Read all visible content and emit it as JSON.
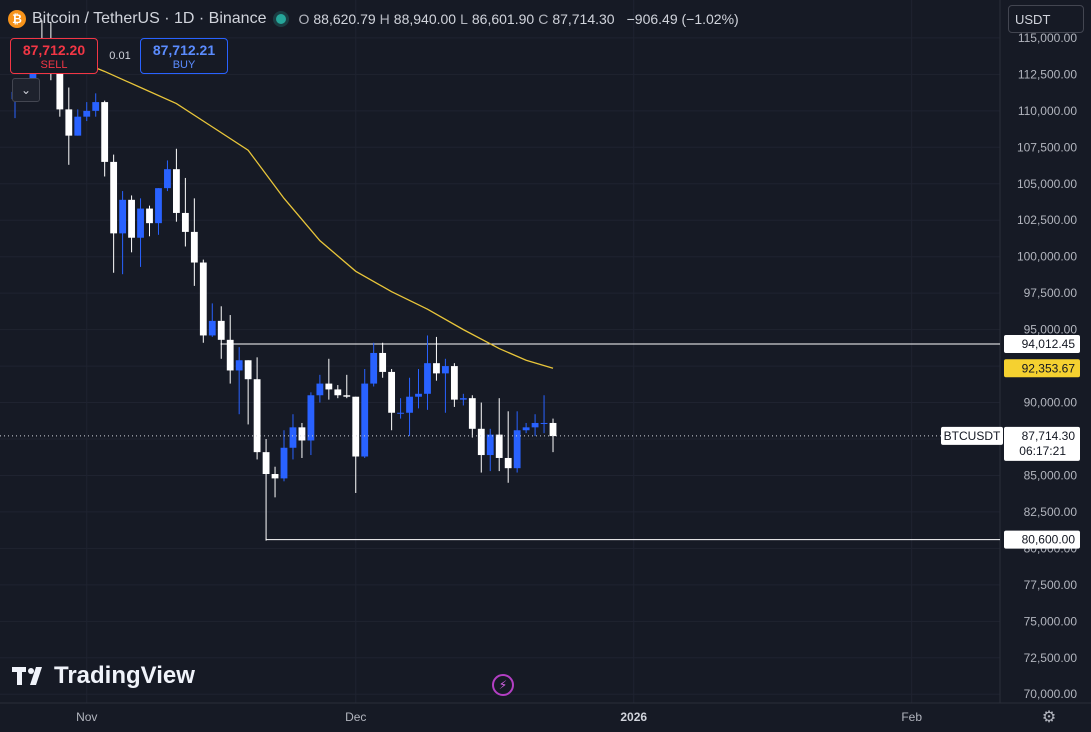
{
  "header": {
    "symbol_title": "Bitcoin / TetherUS · 1D · Binance",
    "o_label": "O",
    "o_value": "88,620.79",
    "h_label": "H",
    "h_value": "88,940.00",
    "l_label": "L",
    "l_value": "86,601.90",
    "c_label": "C",
    "c_value": "87,714.30",
    "change": "−906.49 (−1.02%)"
  },
  "trade": {
    "sell_price": "87,712.20",
    "sell_label": "SELL",
    "buy_price": "87,712.21",
    "buy_label": "BUY",
    "spread": "0.01"
  },
  "currency_selector": "USDT",
  "watermark": "TradingView",
  "colors": {
    "background": "#161a25",
    "up_candle": "#2962ff",
    "down_candle": "#ffffff",
    "ma_line": "#e8c53a",
    "grid": "#1f2330",
    "axis_text": "#b2b5be"
  },
  "chart_data": {
    "type": "candlestick",
    "symbol": "BTCUSDT",
    "interval": "1D",
    "y_axis": {
      "ticks": [
        115000,
        112500,
        110000,
        107500,
        105000,
        102500,
        100000,
        97500,
        95000,
        92500,
        90000,
        87500,
        85000,
        82500,
        80000,
        77500,
        75000,
        72500,
        70000
      ],
      "tick_labels": [
        "115,000.00",
        "112,500.00",
        "110,000.00",
        "107,500.00",
        "105,000.00",
        "102,500.00",
        "100,000.00",
        "97,500.00",
        "95,000.00",
        "92,500.00",
        "90,000.00",
        "87,500.00",
        "85,000.00",
        "82,500.00",
        "80,000.00",
        "77,500.00",
        "75,000.00",
        "72,500.00",
        "70,000.00"
      ],
      "range": [
        69400,
        117600
      ],
      "side": "right"
    },
    "x_axis": {
      "tick_labels": [
        "Nov",
        "Dec",
        "2026",
        "Feb"
      ],
      "tick_dates": [
        "2025-11-01",
        "2025-12-01",
        "2026-01-01",
        "2026-02-01"
      ],
      "range": [
        "2025-10-24",
        "2026-02-22"
      ]
    },
    "candles": [
      {
        "date": "2025-10-24",
        "o": 110800,
        "h": 111900,
        "l": 109500,
        "c": 111300
      },
      {
        "date": "2025-10-25",
        "o": 111300,
        "h": 112000,
        "l": 110800,
        "c": 111600
      },
      {
        "date": "2025-10-26",
        "o": 111600,
        "h": 115000,
        "l": 111300,
        "c": 114600
      },
      {
        "date": "2025-10-27",
        "o": 114600,
        "h": 116200,
        "l": 113900,
        "c": 114100
      },
      {
        "date": "2025-10-28",
        "o": 114100,
        "h": 116100,
        "l": 112100,
        "c": 112900
      },
      {
        "date": "2025-10-29",
        "o": 112900,
        "h": 113600,
        "l": 109600,
        "c": 110100
      },
      {
        "date": "2025-10-30",
        "o": 110100,
        "h": 111600,
        "l": 106300,
        "c": 108300
      },
      {
        "date": "2025-10-31",
        "o": 108300,
        "h": 110100,
        "l": 108300,
        "c": 109600
      },
      {
        "date": "2025-11-01",
        "o": 109600,
        "h": 110600,
        "l": 109300,
        "c": 110000
      },
      {
        "date": "2025-11-02",
        "o": 110000,
        "h": 111200,
        "l": 109600,
        "c": 110600
      },
      {
        "date": "2025-11-03",
        "o": 110600,
        "h": 110700,
        "l": 105500,
        "c": 106500
      },
      {
        "date": "2025-11-04",
        "o": 106500,
        "h": 107000,
        "l": 98900,
        "c": 101600
      },
      {
        "date": "2025-11-05",
        "o": 101600,
        "h": 104500,
        "l": 98800,
        "c": 103900
      },
      {
        "date": "2025-11-06",
        "o": 103900,
        "h": 104200,
        "l": 100300,
        "c": 101300
      },
      {
        "date": "2025-11-07",
        "o": 101300,
        "h": 104000,
        "l": 99300,
        "c": 103300
      },
      {
        "date": "2025-11-08",
        "o": 103300,
        "h": 103500,
        "l": 101400,
        "c": 102300
      },
      {
        "date": "2025-11-09",
        "o": 102300,
        "h": 104700,
        "l": 101500,
        "c": 104700
      },
      {
        "date": "2025-11-10",
        "o": 104700,
        "h": 106600,
        "l": 104500,
        "c": 106000
      },
      {
        "date": "2025-11-11",
        "o": 106000,
        "h": 107400,
        "l": 102400,
        "c": 103000
      },
      {
        "date": "2025-11-12",
        "o": 103000,
        "h": 105400,
        "l": 100700,
        "c": 101700
      },
      {
        "date": "2025-11-13",
        "o": 101700,
        "h": 104000,
        "l": 98000,
        "c": 99600
      },
      {
        "date": "2025-11-14",
        "o": 99600,
        "h": 99800,
        "l": 94100,
        "c": 94600
      },
      {
        "date": "2025-11-15",
        "o": 94600,
        "h": 96800,
        "l": 94500,
        "c": 95600
      },
      {
        "date": "2025-11-16",
        "o": 95600,
        "h": 96600,
        "l": 93000,
        "c": 94300
      },
      {
        "date": "2025-11-17",
        "o": 94300,
        "h": 96000,
        "l": 91300,
        "c": 92200
      },
      {
        "date": "2025-11-18",
        "o": 92200,
        "h": 93800,
        "l": 89200,
        "c": 92900
      },
      {
        "date": "2025-11-19",
        "o": 92900,
        "h": 92900,
        "l": 88500,
        "c": 91600
      },
      {
        "date": "2025-11-20",
        "o": 91600,
        "h": 93100,
        "l": 86100,
        "c": 86600
      },
      {
        "date": "2025-11-21",
        "o": 86600,
        "h": 87500,
        "l": 80600,
        "c": 85100
      },
      {
        "date": "2025-11-22",
        "o": 85100,
        "h": 85600,
        "l": 83500,
        "c": 84800
      },
      {
        "date": "2025-11-23",
        "o": 84800,
        "h": 88100,
        "l": 84600,
        "c": 86900
      },
      {
        "date": "2025-11-24",
        "o": 86900,
        "h": 89200,
        "l": 86100,
        "c": 88300
      },
      {
        "date": "2025-11-25",
        "o": 88300,
        "h": 88600,
        "l": 86200,
        "c": 87400
      },
      {
        "date": "2025-11-26",
        "o": 87400,
        "h": 90700,
        "l": 86400,
        "c": 90500
      },
      {
        "date": "2025-11-27",
        "o": 90500,
        "h": 91900,
        "l": 90000,
        "c": 91300
      },
      {
        "date": "2025-11-28",
        "o": 91300,
        "h": 93000,
        "l": 90200,
        "c": 90900
      },
      {
        "date": "2025-11-29",
        "o": 90900,
        "h": 91200,
        "l": 90300,
        "c": 90500
      },
      {
        "date": "2025-11-30",
        "o": 90500,
        "h": 91900,
        "l": 90300,
        "c": 90400
      },
      {
        "date": "2025-12-01",
        "o": 90400,
        "h": 90400,
        "l": 83800,
        "c": 86300
      },
      {
        "date": "2025-12-02",
        "o": 86300,
        "h": 92300,
        "l": 86200,
        "c": 91300
      },
      {
        "date": "2025-12-03",
        "o": 91300,
        "h": 94100,
        "l": 91100,
        "c": 93400
      },
      {
        "date": "2025-12-04",
        "o": 93400,
        "h": 94100,
        "l": 91700,
        "c": 92100
      },
      {
        "date": "2025-12-05",
        "o": 92100,
        "h": 92300,
        "l": 88100,
        "c": 89300
      },
      {
        "date": "2025-12-06",
        "o": 89300,
        "h": 90300,
        "l": 88900,
        "c": 89300
      },
      {
        "date": "2025-12-07",
        "o": 89300,
        "h": 91700,
        "l": 87700,
        "c": 90400
      },
      {
        "date": "2025-12-08",
        "o": 90400,
        "h": 92300,
        "l": 89600,
        "c": 90600
      },
      {
        "date": "2025-12-09",
        "o": 90600,
        "h": 94600,
        "l": 89500,
        "c": 92700
      },
      {
        "date": "2025-12-10",
        "o": 92700,
        "h": 94500,
        "l": 91500,
        "c": 92000
      },
      {
        "date": "2025-12-11",
        "o": 92000,
        "h": 93000,
        "l": 89300,
        "c": 92500
      },
      {
        "date": "2025-12-12",
        "o": 92500,
        "h": 92700,
        "l": 89700,
        "c": 90200
      },
      {
        "date": "2025-12-13",
        "o": 90200,
        "h": 90600,
        "l": 89800,
        "c": 90300
      },
      {
        "date": "2025-12-14",
        "o": 90300,
        "h": 90500,
        "l": 87600,
        "c": 88200
      },
      {
        "date": "2025-12-15",
        "o": 88200,
        "h": 90000,
        "l": 85200,
        "c": 86400
      },
      {
        "date": "2025-12-16",
        "o": 86400,
        "h": 88200,
        "l": 85300,
        "c": 87800
      },
      {
        "date": "2025-12-17",
        "o": 87800,
        "h": 90300,
        "l": 85300,
        "c": 86200
      },
      {
        "date": "2025-12-18",
        "o": 86200,
        "h": 89400,
        "l": 84500,
        "c": 85500
      },
      {
        "date": "2025-12-19",
        "o": 85500,
        "h": 89400,
        "l": 85200,
        "c": 88100
      },
      {
        "date": "2025-12-20",
        "o": 88100,
        "h": 88600,
        "l": 87900,
        "c": 88300
      },
      {
        "date": "2025-12-21",
        "o": 88300,
        "h": 89200,
        "l": 87700,
        "c": 88600
      },
      {
        "date": "2025-12-22",
        "o": 88600,
        "h": 90500,
        "l": 87900,
        "c": 88600
      },
      {
        "date": "2025-12-23",
        "o": 88600,
        "h": 88900,
        "l": 86600,
        "c": 87700
      }
    ],
    "moving_average": {
      "points": [
        {
          "date": "2025-10-26",
          "v": 114300
        },
        {
          "date": "2025-10-30",
          "v": 113700
        },
        {
          "date": "2025-11-03",
          "v": 112700
        },
        {
          "date": "2025-11-07",
          "v": 111600
        },
        {
          "date": "2025-11-11",
          "v": 110500
        },
        {
          "date": "2025-11-15",
          "v": 108900
        },
        {
          "date": "2025-11-19",
          "v": 107300
        },
        {
          "date": "2025-11-23",
          "v": 104000
        },
        {
          "date": "2025-11-27",
          "v": 101100
        },
        {
          "date": "2025-12-01",
          "v": 99000
        },
        {
          "date": "2025-12-05",
          "v": 97600
        },
        {
          "date": "2025-12-09",
          "v": 96400
        },
        {
          "date": "2025-12-13",
          "v": 95000
        },
        {
          "date": "2025-12-17",
          "v": 93700
        },
        {
          "date": "2025-12-20",
          "v": 92900
        },
        {
          "date": "2025-12-23",
          "v": 92350
        }
      ],
      "last_value_label": "92,353.67"
    },
    "horizontal_lines": [
      {
        "value": 94012.45,
        "label": "94,012.45",
        "start_date": "2025-11-16"
      },
      {
        "value": 80600.0,
        "label": "80,600.00",
        "start_date": "2025-11-21"
      }
    ],
    "last_price": {
      "value": 87714.3,
      "label": "87,714.30",
      "countdown": "06:17:21",
      "symbol_tag": "BTCUSDT"
    }
  }
}
